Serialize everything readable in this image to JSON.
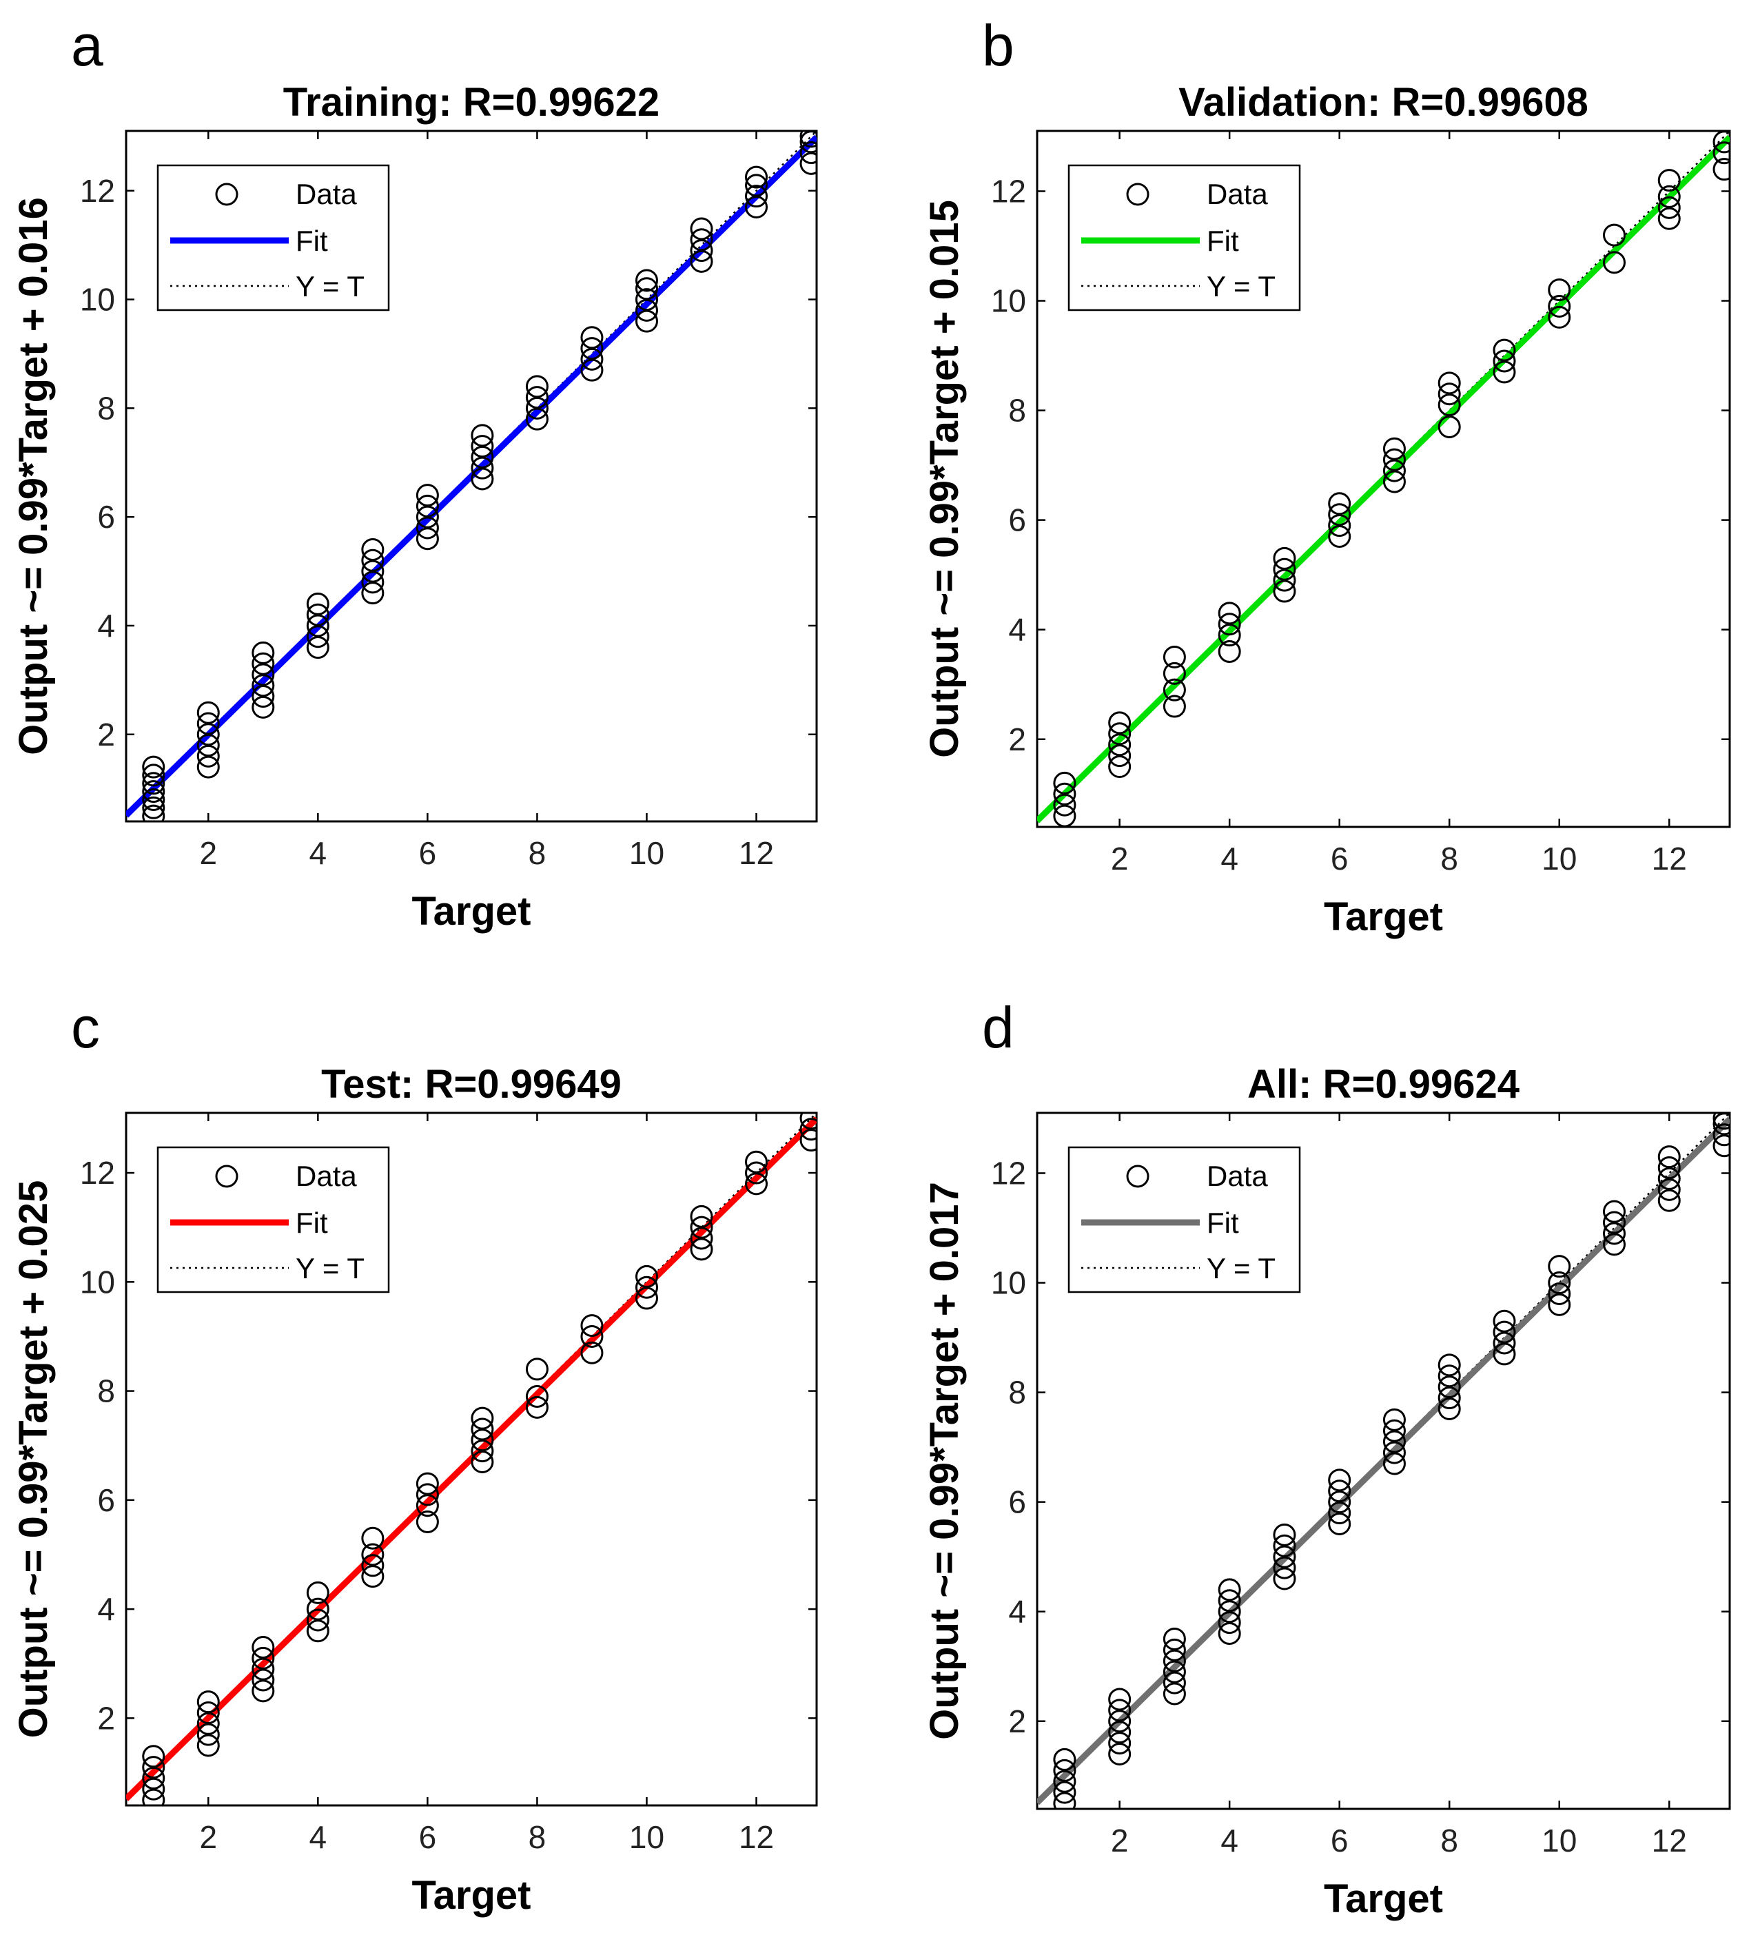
{
  "chart_data": [
    {
      "type": "scatter",
      "letter": "a",
      "title": "Training: R=0.99622",
      "xlabel": "Target",
      "ylabel": "Output ~= 0.99*Target + 0.016",
      "xlim": [
        0.5,
        13.1
      ],
      "ylim": [
        0.4,
        13.1
      ],
      "xticks": [
        2,
        4,
        6,
        8,
        10,
        12
      ],
      "yticks": [
        2,
        4,
        6,
        8,
        10,
        12
      ],
      "fit": {
        "slope": 0.99,
        "intercept": 0.016,
        "color": "#0000ff"
      },
      "legend": [
        "Data",
        "Fit",
        "Y = T"
      ],
      "legend_loc": "top-left",
      "points": [
        [
          1,
          0.5
        ],
        [
          1,
          0.65
        ],
        [
          1,
          0.8
        ],
        [
          1,
          0.95
        ],
        [
          1,
          1.1
        ],
        [
          1,
          1.25
        ],
        [
          1,
          1.4
        ],
        [
          2,
          1.4
        ],
        [
          2,
          1.6
        ],
        [
          2,
          1.8
        ],
        [
          2,
          2.0
        ],
        [
          2,
          2.2
        ],
        [
          2,
          2.4
        ],
        [
          3,
          2.5
        ],
        [
          3,
          2.7
        ],
        [
          3,
          2.9
        ],
        [
          3,
          3.1
        ],
        [
          3,
          3.3
        ],
        [
          3,
          3.5
        ],
        [
          4,
          3.6
        ],
        [
          4,
          3.8
        ],
        [
          4,
          4.0
        ],
        [
          4,
          4.2
        ],
        [
          4,
          4.4
        ],
        [
          5,
          4.6
        ],
        [
          5,
          4.8
        ],
        [
          5,
          5.0
        ],
        [
          5,
          5.2
        ],
        [
          5,
          5.4
        ],
        [
          6,
          5.6
        ],
        [
          6,
          5.8
        ],
        [
          6,
          6.0
        ],
        [
          6,
          6.2
        ],
        [
          6,
          6.4
        ],
        [
          7,
          6.7
        ],
        [
          7,
          6.9
        ],
        [
          7,
          7.1
        ],
        [
          7,
          7.3
        ],
        [
          7,
          7.5
        ],
        [
          8,
          7.8
        ],
        [
          8,
          8.0
        ],
        [
          8,
          8.2
        ],
        [
          8,
          8.4
        ],
        [
          9,
          8.7
        ],
        [
          9,
          8.9
        ],
        [
          9,
          9.1
        ],
        [
          9,
          9.3
        ],
        [
          10,
          9.6
        ],
        [
          10,
          9.8
        ],
        [
          10,
          10.0
        ],
        [
          10,
          10.2
        ],
        [
          10,
          10.35
        ],
        [
          11,
          10.7
        ],
        [
          11,
          10.9
        ],
        [
          11,
          11.1
        ],
        [
          11,
          11.3
        ],
        [
          12,
          11.7
        ],
        [
          12,
          11.9
        ],
        [
          12,
          12.1
        ],
        [
          12,
          12.25
        ],
        [
          13,
          12.5
        ],
        [
          13,
          12.7
        ],
        [
          13,
          12.9
        ],
        [
          13,
          13.0
        ]
      ]
    },
    {
      "type": "scatter",
      "letter": "b",
      "title": "Validation: R=0.99608",
      "xlabel": "Target",
      "ylabel": "Output ~= 0.99*Target + 0.015",
      "xlim": [
        0.5,
        13.1
      ],
      "ylim": [
        0.4,
        13.1
      ],
      "xticks": [
        2,
        4,
        6,
        8,
        10,
        12
      ],
      "yticks": [
        2,
        4,
        6,
        8,
        10,
        12
      ],
      "fit": {
        "slope": 0.99,
        "intercept": 0.015,
        "color": "#00e000"
      },
      "legend": [
        "Data",
        "Fit",
        "Y = T"
      ],
      "legend_loc": "top-left",
      "points": [
        [
          1,
          0.6
        ],
        [
          1,
          0.8
        ],
        [
          1,
          1.0
        ],
        [
          1,
          1.2
        ],
        [
          2,
          1.5
        ],
        [
          2,
          1.7
        ],
        [
          2,
          1.9
        ],
        [
          2,
          2.1
        ],
        [
          2,
          2.3
        ],
        [
          3,
          2.6
        ],
        [
          3,
          2.9
        ],
        [
          3,
          3.2
        ],
        [
          3,
          3.5
        ],
        [
          4,
          3.6
        ],
        [
          4,
          3.9
        ],
        [
          4,
          4.1
        ],
        [
          4,
          4.3
        ],
        [
          5,
          4.7
        ],
        [
          5,
          4.9
        ],
        [
          5,
          5.1
        ],
        [
          5,
          5.3
        ],
        [
          6,
          5.7
        ],
        [
          6,
          5.9
        ],
        [
          6,
          6.1
        ],
        [
          6,
          6.3
        ],
        [
          7,
          6.7
        ],
        [
          7,
          6.9
        ],
        [
          7,
          7.1
        ],
        [
          7,
          7.3
        ],
        [
          8,
          7.7
        ],
        [
          8,
          8.1
        ],
        [
          8,
          8.3
        ],
        [
          8,
          8.5
        ],
        [
          9,
          8.7
        ],
        [
          9,
          8.9
        ],
        [
          9,
          9.1
        ],
        [
          10,
          9.7
        ],
        [
          10,
          9.9
        ],
        [
          10,
          10.2
        ],
        [
          11,
          10.7
        ],
        [
          11,
          11.2
        ],
        [
          12,
          11.5
        ],
        [
          12,
          11.7
        ],
        [
          12,
          11.9
        ],
        [
          12,
          12.2
        ],
        [
          13,
          12.4
        ],
        [
          13,
          12.7
        ],
        [
          13,
          12.9
        ]
      ]
    },
    {
      "type": "scatter",
      "letter": "c",
      "title": "Test: R=0.99649",
      "xlabel": "Target",
      "ylabel": "Output ~= 0.99*Target + 0.025",
      "xlim": [
        0.5,
        13.1
      ],
      "ylim": [
        0.4,
        13.1
      ],
      "xticks": [
        2,
        4,
        6,
        8,
        10,
        12
      ],
      "yticks": [
        2,
        4,
        6,
        8,
        10,
        12
      ],
      "fit": {
        "slope": 0.99,
        "intercept": 0.025,
        "color": "#ff0000"
      },
      "legend": [
        "Data",
        "Fit",
        "Y = T"
      ],
      "legend_loc": "top-left",
      "points": [
        [
          1,
          0.5
        ],
        [
          1,
          0.7
        ],
        [
          1,
          0.9
        ],
        [
          1,
          1.1
        ],
        [
          1,
          1.3
        ],
        [
          2,
          1.5
        ],
        [
          2,
          1.7
        ],
        [
          2,
          1.9
        ],
        [
          2,
          2.1
        ],
        [
          2,
          2.3
        ],
        [
          3,
          2.5
        ],
        [
          3,
          2.7
        ],
        [
          3,
          2.9
        ],
        [
          3,
          3.1
        ],
        [
          3,
          3.3
        ],
        [
          4,
          3.6
        ],
        [
          4,
          3.8
        ],
        [
          4,
          4.0
        ],
        [
          4,
          4.3
        ],
        [
          5,
          4.6
        ],
        [
          5,
          4.8
        ],
        [
          5,
          5.0
        ],
        [
          5,
          5.3
        ],
        [
          6,
          5.6
        ],
        [
          6,
          5.9
        ],
        [
          6,
          6.1
        ],
        [
          6,
          6.3
        ],
        [
          7,
          6.7
        ],
        [
          7,
          6.9
        ],
        [
          7,
          7.1
        ],
        [
          7,
          7.3
        ],
        [
          7,
          7.5
        ],
        [
          8,
          7.7
        ],
        [
          8,
          7.9
        ],
        [
          8,
          8.4
        ],
        [
          9,
          8.7
        ],
        [
          9,
          9.0
        ],
        [
          9,
          9.2
        ],
        [
          10,
          9.7
        ],
        [
          10,
          9.9
        ],
        [
          10,
          10.1
        ],
        [
          11,
          10.6
        ],
        [
          11,
          10.8
        ],
        [
          11,
          11.0
        ],
        [
          11,
          11.2
        ],
        [
          12,
          11.8
        ],
        [
          12,
          12.0
        ],
        [
          12,
          12.2
        ],
        [
          13,
          12.6
        ],
        [
          13,
          12.8
        ],
        [
          13,
          13.0
        ]
      ]
    },
    {
      "type": "scatter",
      "letter": "d",
      "title": "All: R=0.99624",
      "xlabel": "Target",
      "ylabel": "Output ~= 0.99*Target + 0.017",
      "xlim": [
        0.5,
        13.1
      ],
      "ylim": [
        0.4,
        13.1
      ],
      "xticks": [
        2,
        4,
        6,
        8,
        10,
        12
      ],
      "yticks": [
        2,
        4,
        6,
        8,
        10,
        12
      ],
      "fit": {
        "slope": 0.99,
        "intercept": 0.017,
        "color": "#707070"
      },
      "legend": [
        "Data",
        "Fit",
        "Y = T"
      ],
      "legend_loc": "top-left",
      "points": [
        [
          1,
          0.5
        ],
        [
          1,
          0.7
        ],
        [
          1,
          0.9
        ],
        [
          1,
          1.1
        ],
        [
          1,
          1.3
        ],
        [
          2,
          1.4
        ],
        [
          2,
          1.6
        ],
        [
          2,
          1.8
        ],
        [
          2,
          2.0
        ],
        [
          2,
          2.2
        ],
        [
          2,
          2.4
        ],
        [
          3,
          2.5
        ],
        [
          3,
          2.7
        ],
        [
          3,
          2.9
        ],
        [
          3,
          3.1
        ],
        [
          3,
          3.3
        ],
        [
          3,
          3.5
        ],
        [
          4,
          3.6
        ],
        [
          4,
          3.8
        ],
        [
          4,
          4.0
        ],
        [
          4,
          4.2
        ],
        [
          4,
          4.4
        ],
        [
          5,
          4.6
        ],
        [
          5,
          4.8
        ],
        [
          5,
          5.0
        ],
        [
          5,
          5.2
        ],
        [
          5,
          5.4
        ],
        [
          6,
          5.6
        ],
        [
          6,
          5.8
        ],
        [
          6,
          6.0
        ],
        [
          6,
          6.2
        ],
        [
          6,
          6.4
        ],
        [
          7,
          6.7
        ],
        [
          7,
          6.9
        ],
        [
          7,
          7.1
        ],
        [
          7,
          7.3
        ],
        [
          7,
          7.5
        ],
        [
          8,
          7.7
        ],
        [
          8,
          7.9
        ],
        [
          8,
          8.1
        ],
        [
          8,
          8.3
        ],
        [
          8,
          8.5
        ],
        [
          9,
          8.7
        ],
        [
          9,
          8.9
        ],
        [
          9,
          9.1
        ],
        [
          9,
          9.3
        ],
        [
          10,
          9.6
        ],
        [
          10,
          9.8
        ],
        [
          10,
          10.0
        ],
        [
          10,
          10.3
        ],
        [
          11,
          10.7
        ],
        [
          11,
          10.9
        ],
        [
          11,
          11.1
        ],
        [
          11,
          11.3
        ],
        [
          12,
          11.5
        ],
        [
          12,
          11.7
        ],
        [
          12,
          11.9
        ],
        [
          12,
          12.1
        ],
        [
          12,
          12.3
        ],
        [
          13,
          12.5
        ],
        [
          13,
          12.7
        ],
        [
          13,
          12.9
        ],
        [
          13,
          13.0
        ]
      ]
    }
  ]
}
